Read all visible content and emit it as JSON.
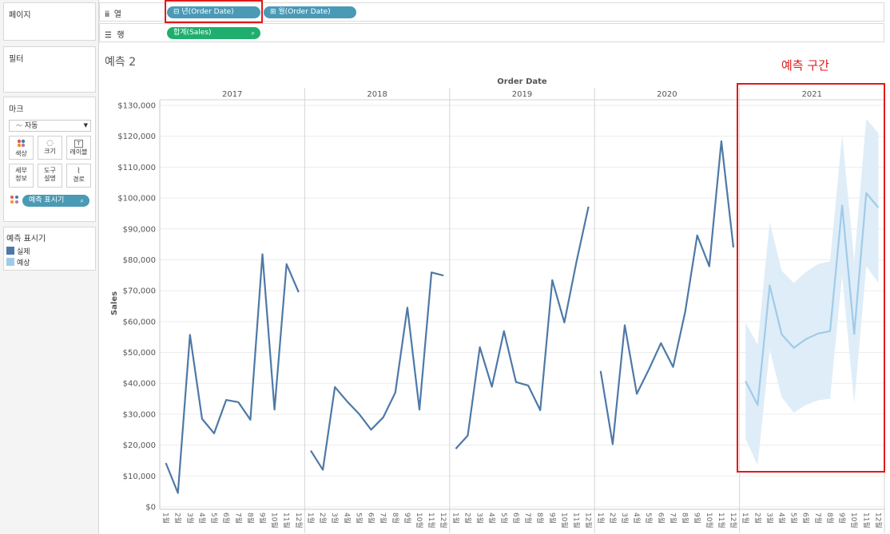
{
  "left_panels": {
    "pages_title": "페이지",
    "filters_title": "필터",
    "marks_title": "마크",
    "marks_type": "자동",
    "mark_buttons": [
      {
        "label": "색상",
        "icon": "color-icon"
      },
      {
        "label": "크기",
        "icon": "size-icon"
      },
      {
        "label": "레이블",
        "icon": "label-icon"
      },
      {
        "label": "세부\n정보",
        "icon": "detail-icon"
      },
      {
        "label": "도구\n설명",
        "icon": "tooltip-icon"
      },
      {
        "label": "경로",
        "icon": "path-icon"
      }
    ],
    "marks_pill": "예측 표시기",
    "legend_title": "예측 표시기",
    "legend_items": [
      {
        "label": "실제",
        "color": "#4e79a7"
      },
      {
        "label": "예상",
        "color": "#a0cbe8"
      }
    ]
  },
  "shelves": {
    "columns_label": "열",
    "rows_label": "행",
    "column_pills": [
      "년(Order Date)",
      "월(Order Date)"
    ],
    "row_pill": "합계(Sales)"
  },
  "sheet_title": "예측 2",
  "forecast_annotation": "예측 구간",
  "colors": {
    "actual": "#4e79a7",
    "forecast": "#a0cbe8",
    "band": "#deedf8",
    "pill_blue": "#4a9ab6",
    "pill_green": "#1fae6e",
    "highlight": "#e11a1a"
  },
  "chart_data": {
    "type": "line",
    "title": "Order Date",
    "ylabel": "Sales",
    "ylim": [
      0,
      130000
    ],
    "y_ticks": [
      "$0",
      "$10,000",
      "$20,000",
      "$30,000",
      "$40,000",
      "$50,000",
      "$60,000",
      "$70,000",
      "$80,000",
      "$90,000",
      "$100,000",
      "$110,000",
      "$120,000",
      "$130,000"
    ],
    "y_tick_values": [
      0,
      10000,
      20000,
      30000,
      40000,
      50000,
      60000,
      70000,
      80000,
      90000,
      100000,
      110000,
      120000,
      130000
    ],
    "panels": [
      "2017",
      "2018",
      "2019",
      "2020",
      "2021"
    ],
    "months": [
      "1월",
      "2월",
      "3월",
      "4월",
      "5월",
      "6월",
      "7월",
      "8월",
      "9월",
      "10월",
      "11월",
      "12월"
    ],
    "series": [
      {
        "name": "실제",
        "panel": "2017",
        "values": [
          14200,
          4500,
          55700,
          28500,
          23800,
          34600,
          33900,
          28200,
          81800,
          31500,
          78600,
          69500
        ]
      },
      {
        "name": "실제",
        "panel": "2018",
        "values": [
          18200,
          12000,
          38800,
          34200,
          30100,
          25000,
          29000,
          37000,
          64500,
          31500,
          75900,
          74900
        ]
      },
      {
        "name": "실제",
        "panel": "2019",
        "values": [
          18800,
          23100,
          51700,
          38900,
          56900,
          40400,
          39300,
          31300,
          73400,
          59700,
          79300,
          97200
        ]
      },
      {
        "name": "실제",
        "panel": "2020",
        "values": [
          44000,
          20300,
          58800,
          36600,
          44500,
          53000,
          45300,
          63100,
          87900,
          77900,
          118400,
          84000
        ]
      },
      {
        "name": "예상",
        "panel": "2021",
        "values": [
          40700,
          33000,
          71700,
          55800,
          51500,
          54300,
          56100,
          56900,
          97600,
          56000,
          101600,
          96900
        ]
      }
    ],
    "forecast_band": {
      "panel": "2021",
      "upper": [
        59600,
        52500,
        92300,
        76400,
        72500,
        76000,
        78600,
        79500,
        120500,
        79600,
        125600,
        121000
      ],
      "lower": [
        22000,
        13500,
        51000,
        35500,
        30500,
        33000,
        34500,
        35000,
        75000,
        33500,
        78000,
        72500
      ]
    },
    "grid": true,
    "legend": "left"
  }
}
